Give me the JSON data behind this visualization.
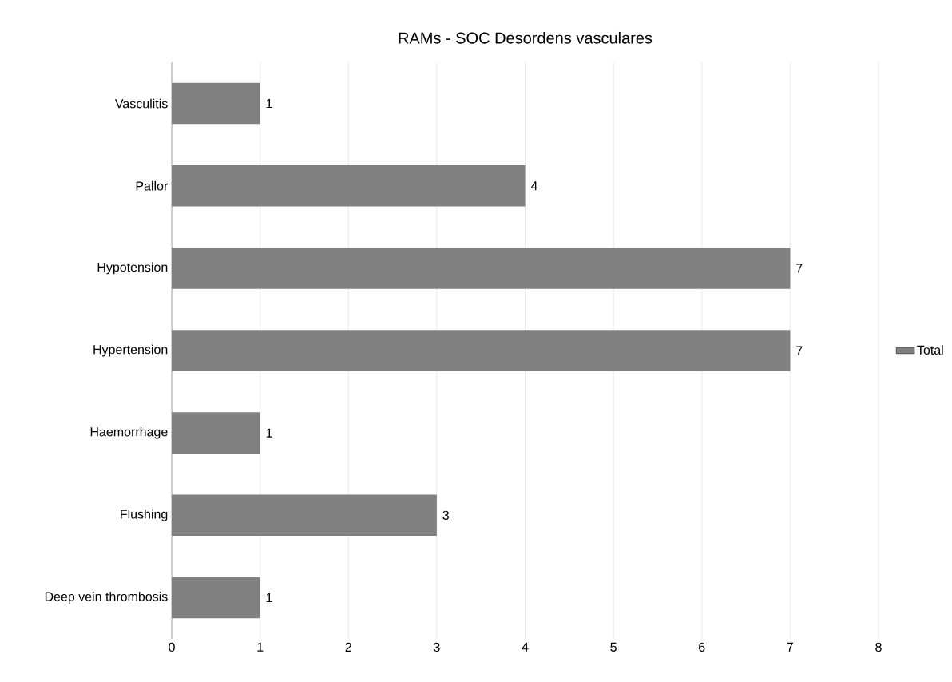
{
  "chart_data": {
    "type": "bar",
    "orientation": "horizontal",
    "title": "RAMs - SOC Desordens vasculares",
    "categories": [
      "Vasculitis",
      "Pallor",
      "Hypotension",
      "Hypertension",
      "Haemorrhage",
      "Flushing",
      "Deep vein thrombosis"
    ],
    "series": [
      {
        "name": "Total",
        "color": "#808080",
        "values": [
          1,
          4,
          7,
          7,
          1,
          3,
          1
        ]
      }
    ],
    "xlim": [
      0,
      8
    ],
    "xticks": [
      0,
      1,
      2,
      3,
      4,
      5,
      6,
      7,
      8
    ],
    "grid": "x",
    "legend": "right",
    "data_labels": true
  }
}
